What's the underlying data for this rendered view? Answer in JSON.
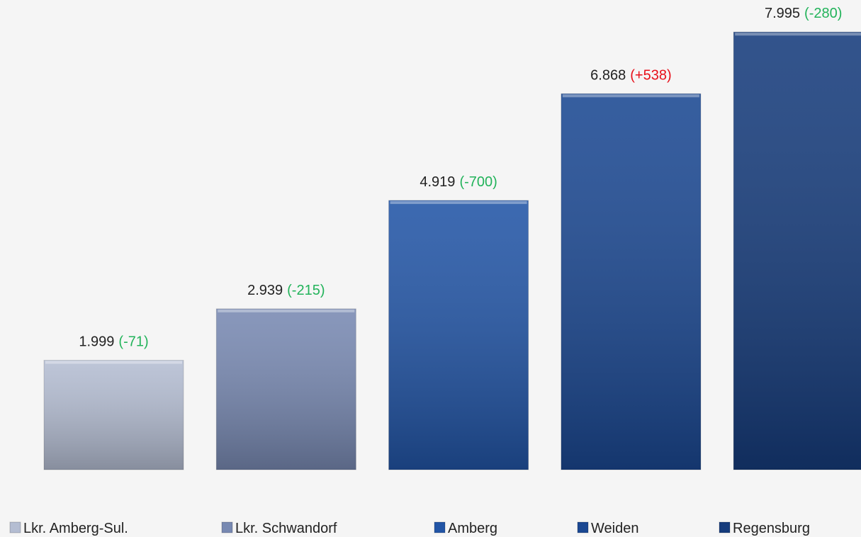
{
  "chart_data": {
    "type": "bar",
    "ylim": [
      0,
      8580
    ],
    "change_colors": {
      "negative": "#22b35a",
      "positive": "#e8101a"
    },
    "series": [
      {
        "name": "Lkr. Amberg-Sul.",
        "color": "#b4bdd2",
        "values": [
          1999
        ],
        "value_labels": [
          "1.999"
        ],
        "changes": [
          -71
        ],
        "change_labels": [
          "(-71)"
        ]
      },
      {
        "name": "Lkr. Schwandorf",
        "color": "#7889b2",
        "values": [
          2939
        ],
        "value_labels": [
          "2.939"
        ],
        "changes": [
          -215
        ],
        "change_labels": [
          "(-215)"
        ]
      },
      {
        "name": "Amberg",
        "color": "#2255a6",
        "values": [
          4919
        ],
        "value_labels": [
          "4.919"
        ],
        "changes": [
          -700
        ],
        "change_labels": [
          "(-700)"
        ]
      },
      {
        "name": "Weiden",
        "color": "#1b4892",
        "values": [
          6868
        ],
        "value_labels": [
          "6.868"
        ],
        "changes": [
          538
        ],
        "change_labels": [
          "(+538)"
        ]
      },
      {
        "name": "Regensburg",
        "color": "#163c7c",
        "values": [
          7995
        ],
        "value_labels": [
          "7.995"
        ],
        "changes": [
          -280
        ],
        "change_labels": [
          "(-280)"
        ]
      }
    ]
  }
}
